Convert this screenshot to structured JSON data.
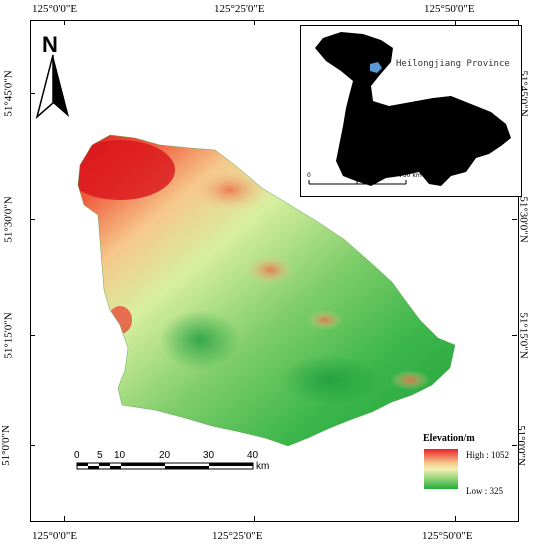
{
  "top_labels": [
    "125°0'0\"E",
    "125°25'0\"E",
    "125°50'0\"E"
  ],
  "bottom_labels": [
    "125°0'0\"E",
    "125°25'0\"E",
    "125°50'0\"E"
  ],
  "left_labels": [
    "51°45'0\"N",
    "51°30'0\"N",
    "51°15'0\"N",
    "51°0'0\"N"
  ],
  "right_labels": [
    "51°45'0\"N",
    "51°30'0\"N",
    "51°15'0\"N",
    "51°0'0\"N"
  ],
  "north_arrow": {
    "letter": "N",
    "icon": "north-arrow-icon"
  },
  "inset": {
    "label": "Heilongjiang Province",
    "scale_labels": [
      "0",
      "375",
      "750 km"
    ],
    "province_color": "#000000",
    "study_area_color": "#5b9bd5"
  },
  "scale_bar": {
    "labels": [
      "0",
      "5",
      "10",
      "20",
      "30",
      "40"
    ],
    "unit": "km"
  },
  "legend": {
    "title": "Elevation/m",
    "high": "High : 1052",
    "low": "Low : 325",
    "high_color": "#e8202a",
    "low_color": "#22ad38"
  }
}
